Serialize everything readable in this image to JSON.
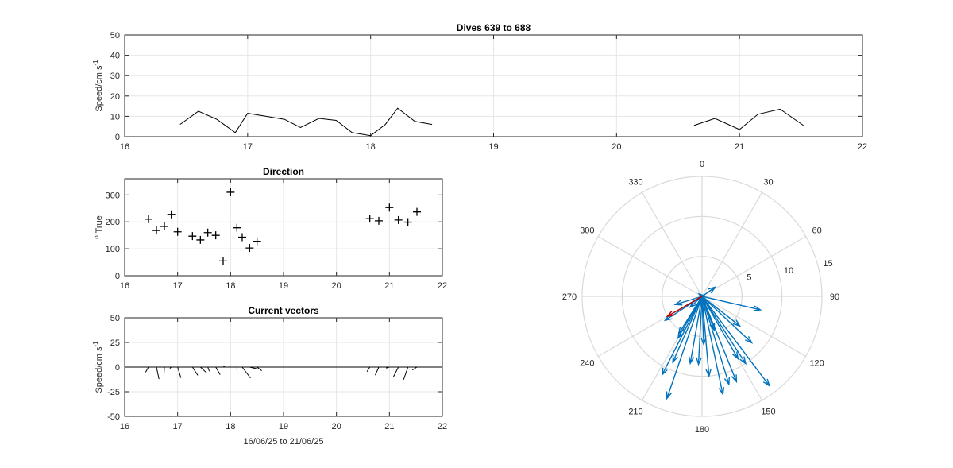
{
  "figure_title": "Dives 639 to 688",
  "colors": {
    "axis": "#262626",
    "grid": "#e6e6e6",
    "line": "#000000",
    "arrow": "#0072bd",
    "mean_arrow": "#d95319",
    "polar_grid": "#d9d9d9"
  },
  "chart_data": [
    {
      "id": "speed",
      "type": "line",
      "title": "Dives 639 to 688",
      "xlabel": "",
      "ylabel": "Speed/cm s",
      "ylabel_superscript": "-1",
      "xlim": [
        16,
        22
      ],
      "ylim": [
        0,
        50
      ],
      "xticks": [
        "16",
        "17",
        "18",
        "19",
        "20",
        "21",
        "22"
      ],
      "yticks": [
        "0",
        "10",
        "20",
        "30",
        "40",
        "50"
      ],
      "grid": true,
      "segments": [
        {
          "x": [
            16.45,
            16.6,
            16.75,
            16.9,
            17.0,
            17.15,
            17.3,
            17.43,
            17.58,
            17.72,
            17.85,
            18.0,
            18.12,
            18.22,
            18.36,
            18.5
          ],
          "y": [
            6,
            12.5,
            8.5,
            2,
            11.5,
            10,
            8.5,
            4.5,
            9,
            8,
            2,
            0.5,
            6,
            14,
            7.5,
            6
          ]
        },
        {
          "x": [
            20.63,
            20.8,
            21.0,
            21.15,
            21.33,
            21.52
          ],
          "y": [
            5.5,
            9,
            3.5,
            11,
            13.5,
            5.5
          ]
        }
      ]
    },
    {
      "id": "direction",
      "type": "scatter",
      "title": "Direction",
      "xlabel": "",
      "ylabel": "True",
      "ylabel_prefix": "o",
      "xlim": [
        16,
        22
      ],
      "ylim": [
        0,
        360
      ],
      "xticks": [
        "16",
        "17",
        "18",
        "19",
        "20",
        "21",
        "22"
      ],
      "yticks": [
        "0",
        "100",
        "200",
        "300"
      ],
      "grid": true,
      "marker": "+",
      "x": [
        16.45,
        16.6,
        16.75,
        16.88,
        17.0,
        17.28,
        17.43,
        17.57,
        17.72,
        17.86,
        18.0,
        18.12,
        18.22,
        18.36,
        18.5,
        20.63,
        20.8,
        21.0,
        21.17,
        21.35,
        21.52
      ],
      "y": [
        210,
        168,
        183,
        228,
        163,
        147,
        133,
        160,
        150,
        55,
        310,
        178,
        143,
        103,
        128,
        212,
        204,
        253,
        207,
        199,
        237
      ]
    },
    {
      "id": "vectors",
      "type": "line",
      "title": "Current vectors",
      "xlabel": "16/06/25 to 21/06/25",
      "ylabel": "Speed/cm s",
      "ylabel_superscript": "-1",
      "xlim": [
        16,
        22
      ],
      "ylim": [
        -50,
        50
      ],
      "xticks": [
        "16",
        "17",
        "18",
        "19",
        "20",
        "21",
        "22"
      ],
      "yticks": [
        "-50",
        "-25",
        "0",
        "25",
        "50"
      ],
      "grid": true,
      "stick_days": [
        16.45,
        16.6,
        16.75,
        16.88,
        17.0,
        17.28,
        17.43,
        17.57,
        17.72,
        17.86,
        18.0,
        18.12,
        18.22,
        18.36,
        18.5,
        20.63,
        20.8,
        21.0,
        21.17,
        21.35,
        21.52
      ],
      "stick_speed": [
        6,
        12.5,
        8.5,
        2,
        11.5,
        10,
        8.5,
        4.5,
        9,
        2,
        0.5,
        6,
        14,
        7.5,
        6,
        5.5,
        9,
        3.5,
        11,
        13.5,
        5.5
      ],
      "stick_direction": [
        210,
        168,
        183,
        228,
        163,
        147,
        133,
        160,
        150,
        55,
        310,
        178,
        143,
        103,
        128,
        212,
        204,
        253,
        207,
        199,
        237
      ]
    },
    {
      "id": "polar",
      "type": "scatter",
      "title": "",
      "angle_ticks": [
        "0",
        "30",
        "60",
        "90",
        "120",
        "150",
        "180",
        "210",
        "240",
        "270",
        "300",
        "330"
      ],
      "radius_ticks": [
        "5",
        "10",
        "15"
      ],
      "rmax": 15,
      "arrows": {
        "direction": [
          210,
          168,
          183,
          228,
          163,
          147,
          133,
          160,
          150,
          55,
          310,
          178,
          143,
          103,
          128,
          212,
          204,
          253,
          207,
          199,
          237,
          190,
          175,
          158
        ],
        "speed": [
          6,
          12.5,
          8.5,
          2,
          11.5,
          10,
          8.5,
          4.5,
          9,
          2,
          0.5,
          6,
          14,
          7.5,
          6,
          5.5,
          9,
          3.5,
          11,
          13.5,
          5.5,
          8.5,
          10,
          11.5
        ]
      },
      "mean_arrow": {
        "direction": 240,
        "speed": 5
      }
    }
  ]
}
